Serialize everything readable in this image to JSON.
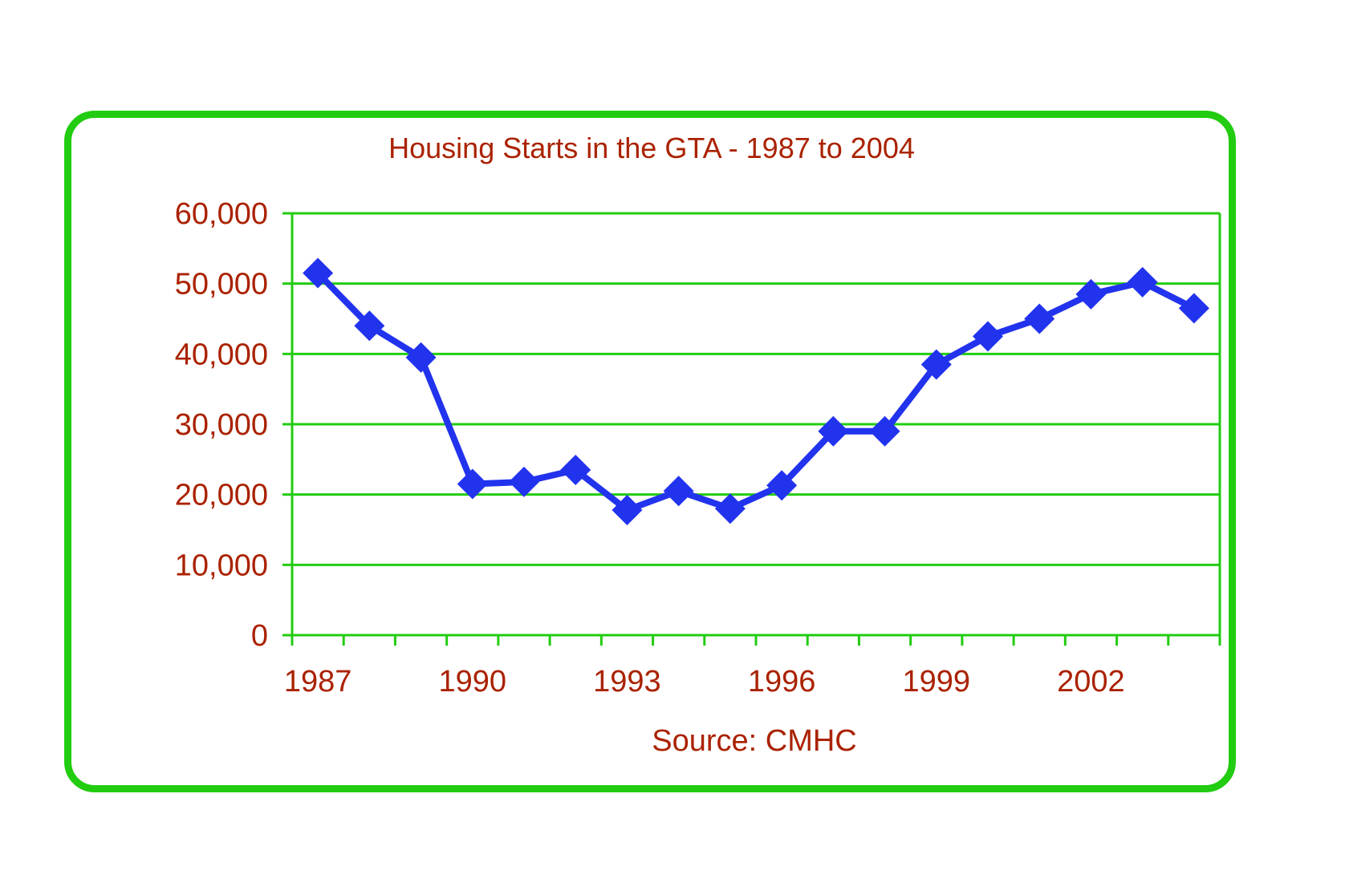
{
  "colors": {
    "frame": "#22cc11",
    "grid": "#22cc11",
    "text": "#aa2200",
    "series": "#2233ee"
  },
  "chart_data": {
    "type": "line",
    "title": "Housing Starts in the GTA - 1987 to 2004",
    "source": "Source:  CMHC",
    "x": [
      1987,
      1988,
      1989,
      1990,
      1991,
      1992,
      1993,
      1994,
      1995,
      1996,
      1997,
      1998,
      1999,
      2000,
      2001,
      2002,
      2003,
      2004
    ],
    "x_tick_labels": [
      "1987",
      "1990",
      "1993",
      "1996",
      "1999",
      "2002"
    ],
    "y_tick_labels": [
      "60,000",
      "50,000",
      "40,000",
      "30,000",
      "20,000",
      "10,000",
      "0"
    ],
    "ylim": [
      0,
      60000
    ],
    "grid": true,
    "legend": false,
    "series": [
      {
        "values": [
          51500,
          44000,
          39500,
          21500,
          21800,
          23500,
          17800,
          20500,
          18000,
          21300,
          29000,
          29000,
          38500,
          42500,
          45000,
          48500,
          50200,
          46500
        ]
      }
    ]
  }
}
